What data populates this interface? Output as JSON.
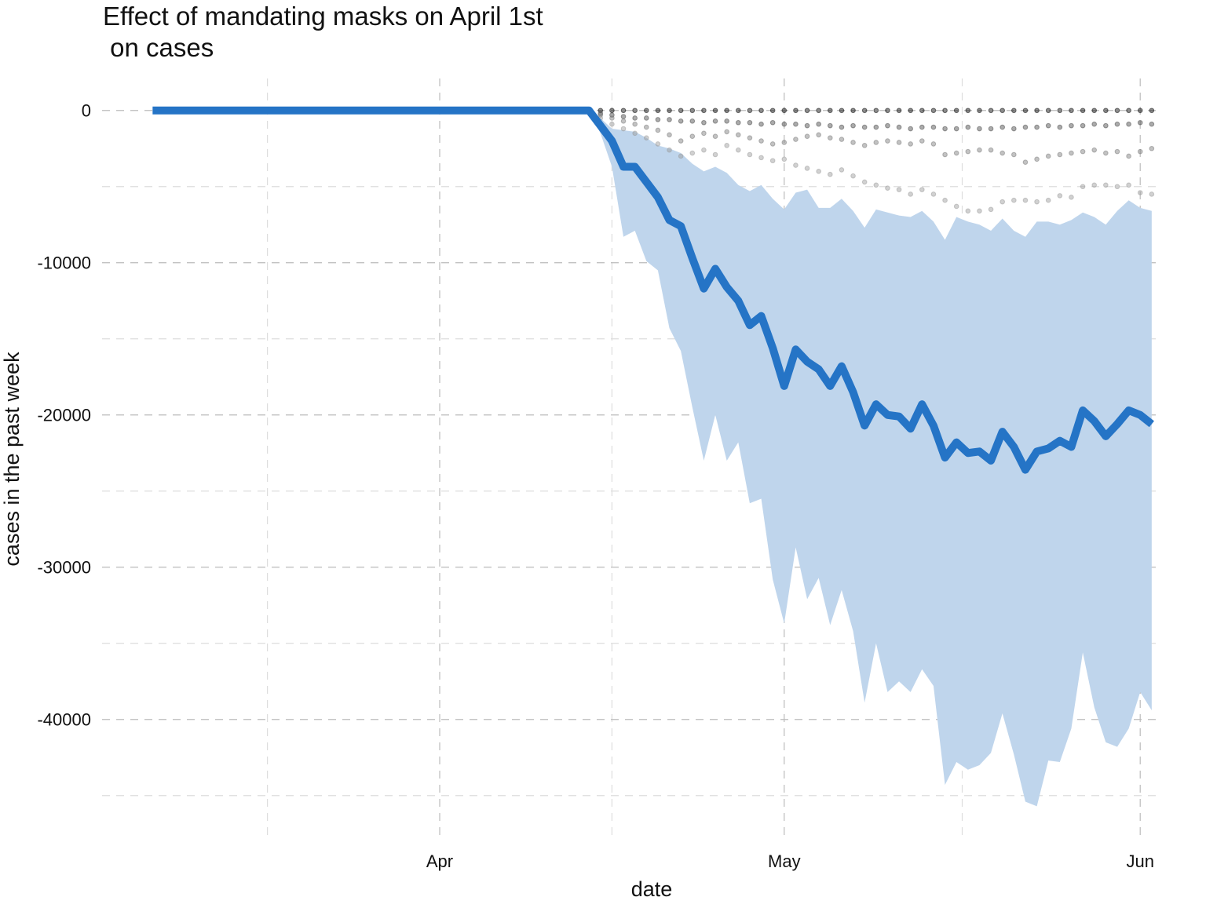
{
  "chart_data": {
    "type": "line",
    "title": "Effect of mandating masks on April 1st\n on cases",
    "x_label": "date",
    "y_label": "cases in the past week",
    "x": [
      -25,
      -24,
      -23,
      -22,
      -21,
      -20,
      -19,
      -18,
      -17,
      -16,
      -15,
      -14,
      -13,
      -12,
      -11,
      -10,
      -9,
      -8,
      -7,
      -6,
      -5,
      -4,
      -3,
      -2,
      -1,
      0,
      1,
      2,
      3,
      4,
      5,
      6,
      7,
      8,
      9,
      10,
      11,
      12,
      13,
      14,
      15,
      16,
      17,
      18,
      19,
      20,
      21,
      22,
      23,
      24,
      25,
      26,
      27,
      28,
      29,
      30,
      31,
      32,
      33,
      34,
      35,
      36,
      37,
      38,
      39,
      40,
      41,
      42,
      43,
      44,
      45,
      46,
      47,
      48,
      49,
      50,
      51,
      52,
      53,
      54,
      55,
      56,
      57,
      58,
      59,
      60,
      61,
      62
    ],
    "series": [
      {
        "color": "#2574c6",
        "band_color": "#bfd5ec",
        "values": [
          0,
          0,
          0,
          0,
          0,
          0,
          0,
          0,
          0,
          0,
          0,
          0,
          0,
          0,
          0,
          0,
          0,
          0,
          0,
          0,
          0,
          0,
          0,
          0,
          0,
          0,
          0,
          0,
          0,
          0,
          0,
          0,
          0,
          0,
          0,
          0,
          0,
          0,
          0,
          -1000,
          -2000,
          -3700,
          -3700,
          -4700,
          -5700,
          -7200,
          -7600,
          -9700,
          -11700,
          -10400,
          -11600,
          -12500,
          -14100,
          -13500,
          -15600,
          -18100,
          -15700,
          -16500,
          -17000,
          -18100,
          -16800,
          -18500,
          -20700,
          -19300,
          -20000,
          -20100,
          -20900,
          -19300,
          -20700,
          -22800,
          -21800,
          -22500,
          -22400,
          -23000,
          -21100,
          -22100,
          -23600,
          -22400,
          -22200,
          -21700,
          -22100,
          -19700,
          -20400,
          -21400,
          -20600,
          -19700,
          -20000,
          -20600
        ],
        "upper": [
          0,
          0,
          0,
          0,
          0,
          0,
          0,
          0,
          0,
          0,
          0,
          0,
          0,
          0,
          0,
          0,
          0,
          0,
          0,
          0,
          0,
          0,
          0,
          0,
          0,
          0,
          0,
          0,
          0,
          0,
          0,
          0,
          0,
          0,
          0,
          0,
          0,
          0,
          0,
          -500,
          -1200,
          -1300,
          -1400,
          -1800,
          -2300,
          -2500,
          -2800,
          -3500,
          -4000,
          -3700,
          -4100,
          -4900,
          -5300,
          -4900,
          -5800,
          -6500,
          -5400,
          -5200,
          -6400,
          -6400,
          -5800,
          -6600,
          -7700,
          -6500,
          -6700,
          -6900,
          -7000,
          -6600,
          -7300,
          -8500,
          -7000,
          -7300,
          -7500,
          -7900,
          -7100,
          -7900,
          -8300,
          -7300,
          -7300,
          -7500,
          -7200,
          -6700,
          -7000,
          -7500,
          -6600,
          -5900,
          -6400,
          -6600
        ],
        "lower": [
          0,
          0,
          0,
          0,
          0,
          0,
          0,
          0,
          0,
          0,
          0,
          0,
          0,
          0,
          0,
          0,
          0,
          0,
          0,
          0,
          0,
          0,
          0,
          0,
          0,
          0,
          0,
          0,
          0,
          0,
          0,
          0,
          0,
          0,
          0,
          0,
          0,
          0,
          0,
          -1500,
          -3700,
          -8300,
          -7900,
          -9900,
          -10500,
          -14300,
          -15800,
          -19500,
          -23000,
          -20000,
          -23000,
          -21800,
          -25800,
          -25500,
          -30800,
          -33700,
          -28700,
          -32100,
          -30700,
          -33800,
          -31500,
          -34200,
          -38900,
          -35000,
          -38200,
          -37500,
          -38200,
          -36700,
          -37800,
          -44300,
          -42800,
          -43300,
          -43000,
          -42200,
          -39600,
          -42300,
          -45400,
          -45700,
          -42700,
          -42800,
          -40600,
          -35600,
          -39200,
          -41500,
          -41800,
          -40600,
          -38200,
          -39400
        ]
      }
    ],
    "points_x": [
      14,
      15,
      16,
      17,
      18,
      19,
      20,
      21,
      22,
      23,
      24,
      25,
      26,
      27,
      28,
      29,
      30,
      31,
      32,
      33,
      34,
      35,
      36,
      37,
      38,
      39,
      40,
      41,
      42,
      43,
      44,
      45,
      46,
      47,
      48,
      49,
      50,
      51,
      52,
      53,
      54,
      55,
      56,
      57,
      58,
      59,
      60,
      61,
      62
    ],
    "points": [
      {
        "color": "#000000",
        "values": [
          0,
          0,
          0,
          0,
          0,
          0,
          0,
          0,
          0,
          0,
          0,
          0,
          0,
          0,
          0,
          0,
          0,
          0,
          0,
          0,
          0,
          0,
          0,
          0,
          0,
          0,
          0,
          0,
          0,
          0,
          0,
          0,
          0,
          0,
          0,
          0,
          0,
          0,
          0,
          0,
          0,
          0,
          0,
          0,
          0,
          0,
          0,
          0,
          0
        ]
      },
      {
        "color": "#444444",
        "values": [
          -200,
          -300,
          -400,
          -500,
          -500,
          -600,
          -600,
          -700,
          -700,
          -800,
          -700,
          -700,
          -800,
          -800,
          -900,
          -800,
          -900,
          -900,
          -1000,
          -900,
          -1000,
          -1100,
          -1000,
          -1100,
          -1100,
          -1000,
          -1100,
          -1200,
          -1100,
          -1100,
          -1200,
          -1200,
          -1100,
          -1200,
          -1200,
          -1100,
          -1200,
          -1100,
          -1100,
          -1000,
          -1100,
          -1000,
          -1000,
          -900,
          -1000,
          -900,
          -900,
          -800,
          -900
        ]
      },
      {
        "color": "#777777",
        "values": [
          -300,
          -500,
          -700,
          -900,
          -1100,
          -1300,
          -1600,
          -2000,
          -1700,
          -1500,
          -1700,
          -1400,
          -1600,
          -1800,
          -2000,
          -2200,
          -2100,
          -1900,
          -1700,
          -1600,
          -1800,
          -1900,
          -2100,
          -2300,
          -2100,
          -2000,
          -2100,
          -2200,
          -2000,
          -2200,
          -2900,
          -2800,
          -2700,
          -2600,
          -2600,
          -2800,
          -2900,
          -3400,
          -3200,
          -3000,
          -2900,
          -2800,
          -2700,
          -2600,
          -2800,
          -2700,
          -3000,
          -2700,
          -2500
        ]
      },
      {
        "color": "#999999",
        "values": [
          -500,
          -900,
          -1200,
          -1500,
          -1800,
          -2200,
          -2600,
          -3000,
          -2800,
          -2600,
          -2900,
          -2300,
          -2600,
          -2900,
          -3100,
          -3300,
          -3200,
          -3600,
          -3800,
          -4000,
          -4200,
          -3900,
          -4300,
          -4700,
          -4900,
          -5100,
          -5200,
          -5500,
          -5200,
          -5500,
          -5900,
          -6300,
          -6600,
          -6600,
          -6500,
          -6000,
          -5900,
          -5900,
          -6000,
          -5900,
          -5600,
          -5700,
          -5000,
          -4900,
          -4900,
          -5000,
          -4900,
          -5400,
          -5500
        ]
      }
    ],
    "xlim": [
      -29.4,
      62.9
    ],
    "ylim": [
      -47900,
      2100
    ],
    "xticks": [
      {
        "value": 0,
        "label": "Apr"
      },
      {
        "value": 30,
        "label": "May"
      },
      {
        "value": 61,
        "label": "Jun"
      }
    ],
    "x_minor_ticks": [
      -15,
      15,
      45.5
    ],
    "yticks": [
      0,
      -10000,
      -20000,
      -30000,
      -40000
    ],
    "y_minor_ticks": [
      -5000,
      -15000,
      -25000,
      -35000,
      -45000
    ],
    "grid": true
  }
}
